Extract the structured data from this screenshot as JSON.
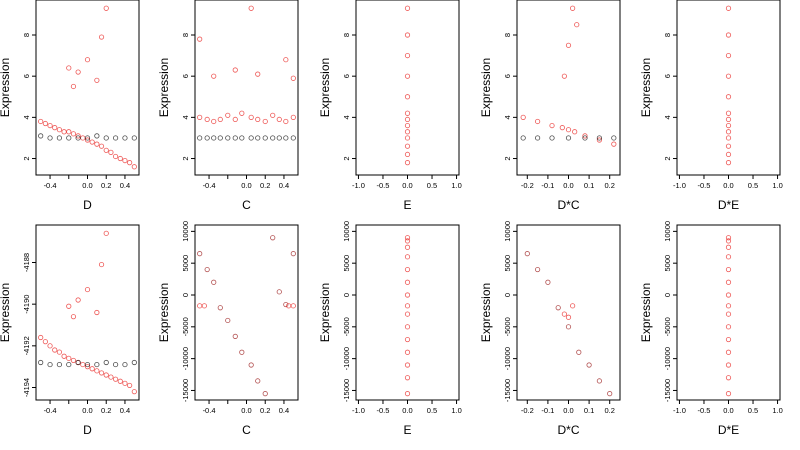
{
  "colors": {
    "red_series": "#e8211f",
    "black_series": "#111111",
    "dark_red": "#9b1b1b"
  },
  "chart_data": [
    {
      "type": "scatter",
      "xlabel": "D",
      "ylabel": "Expression",
      "xlim": [
        -0.55,
        0.55
      ],
      "ylim": [
        1.2,
        9.7
      ],
      "xticks": [
        -0.4,
        -0.2,
        0.0,
        0.2,
        0.4
      ],
      "xtick_labels": [
        "-0.4",
        "",
        "0.0",
        "0.2",
        "0.4"
      ],
      "yticks": [
        2,
        4,
        6,
        8
      ],
      "ytick_labels": [
        "2",
        "4",
        "6",
        "8"
      ],
      "series": [
        {
          "color": "red",
          "x": [
            -0.5,
            -0.45,
            -0.4,
            -0.35,
            -0.3,
            -0.25,
            -0.2,
            -0.15,
            -0.1,
            -0.05,
            0.0,
            0.05,
            0.1,
            0.15,
            0.2,
            0.25,
            0.3,
            0.35,
            0.4,
            0.45,
            0.5
          ],
          "y": [
            3.8,
            3.7,
            3.6,
            3.5,
            3.4,
            3.3,
            3.3,
            3.2,
            3.1,
            3.0,
            2.9,
            2.8,
            2.7,
            2.6,
            2.4,
            2.3,
            2.1,
            2.0,
            1.9,
            1.8,
            1.6
          ]
        },
        {
          "color": "red",
          "x": [
            -0.2,
            -0.1,
            0.0,
            0.1,
            0.15,
            0.2,
            -0.15
          ],
          "y": [
            6.4,
            6.2,
            6.8,
            5.8,
            7.9,
            9.3,
            5.5
          ]
        },
        {
          "color": "black",
          "x": [
            -0.5,
            -0.4,
            -0.3,
            -0.2,
            -0.1,
            0.0,
            0.1,
            0.2,
            0.3,
            0.4,
            0.5
          ],
          "y": [
            3.1,
            3.0,
            3.0,
            3.0,
            3.0,
            3.0,
            3.1,
            3.0,
            3.0,
            3.0,
            3.0
          ]
        }
      ]
    },
    {
      "type": "scatter",
      "xlabel": "C",
      "ylabel": "Expression",
      "xlim": [
        -0.55,
        0.55
      ],
      "ylim": [
        1.2,
        9.7
      ],
      "xticks": [
        -0.4,
        -0.2,
        0.0,
        0.2,
        0.4
      ],
      "xtick_labels": [
        "-0.4",
        "",
        "0.0",
        "0.2",
        "0.4"
      ],
      "yticks": [
        2,
        4,
        6,
        8
      ],
      "ytick_labels": [
        "2",
        "4",
        "6",
        "8"
      ],
      "series": [
        {
          "color": "red",
          "x": [
            -0.5,
            -0.42,
            -0.35,
            -0.28,
            -0.2,
            -0.12,
            -0.05,
            0.05,
            0.12,
            0.2,
            0.28,
            0.35,
            0.42,
            0.5
          ],
          "y": [
            4.0,
            3.9,
            3.8,
            3.9,
            4.1,
            3.9,
            4.2,
            4.0,
            3.9,
            3.8,
            4.1,
            3.9,
            3.8,
            4.0
          ]
        },
        {
          "color": "red",
          "x": [
            -0.5,
            -0.35,
            -0.12,
            0.05,
            0.12,
            0.42,
            0.5
          ],
          "y": [
            7.8,
            6.0,
            6.3,
            9.3,
            6.1,
            6.8,
            5.9
          ]
        },
        {
          "color": "black",
          "x": [
            -0.5,
            -0.42,
            -0.35,
            -0.28,
            -0.2,
            -0.12,
            -0.05,
            0.05,
            0.12,
            0.2,
            0.28,
            0.35,
            0.42,
            0.5
          ],
          "y": [
            3.0,
            3.0,
            3.0,
            3.0,
            3.0,
            3.0,
            3.0,
            3.0,
            3.0,
            3.0,
            3.0,
            3.0,
            3.0,
            3.0
          ]
        }
      ]
    },
    {
      "type": "scatter",
      "xlabel": "E",
      "ylabel": "Expression",
      "xlim": [
        -1.05,
        1.05
      ],
      "ylim": [
        1.2,
        9.7
      ],
      "xticks": [
        -1.0,
        -0.5,
        0.0,
        0.5,
        1.0
      ],
      "xtick_labels": [
        "-1.0",
        "-0.5",
        "0.0",
        "0.5",
        "1.0"
      ],
      "yticks": [
        2,
        4,
        6,
        8
      ],
      "ytick_labels": [
        "2",
        "4",
        "6",
        "8"
      ],
      "series": [
        {
          "color": "red",
          "x": [
            0,
            0,
            0,
            0,
            0,
            0,
            0,
            0,
            0,
            0,
            0,
            0,
            0
          ],
          "y": [
            1.8,
            2.2,
            2.6,
            3.0,
            3.3,
            3.6,
            3.9,
            4.2,
            5.0,
            6.0,
            7.0,
            8.0,
            9.3
          ]
        }
      ]
    },
    {
      "type": "scatter",
      "xlabel": "D*C",
      "ylabel": "Expression",
      "xlim": [
        -0.25,
        0.25
      ],
      "ylim": [
        1.2,
        9.7
      ],
      "xticks": [
        -0.2,
        -0.1,
        0.0,
        0.1,
        0.2
      ],
      "xtick_labels": [
        "-0.2",
        "-0.1",
        "0.0",
        "0.1",
        "0.2"
      ],
      "yticks": [
        2,
        4,
        6,
        8
      ],
      "ytick_labels": [
        "2",
        "4",
        "6",
        "8"
      ],
      "series": [
        {
          "color": "red",
          "x": [
            -0.22,
            -0.15,
            -0.08,
            -0.03,
            0.0,
            0.03,
            0.08,
            0.15,
            0.22
          ],
          "y": [
            4.0,
            3.8,
            3.6,
            3.5,
            3.4,
            3.3,
            3.1,
            2.9,
            2.7
          ]
        },
        {
          "color": "red",
          "x": [
            -0.02,
            0.0,
            0.02,
            0.04
          ],
          "y": [
            6.0,
            7.5,
            9.3,
            8.5
          ]
        },
        {
          "color": "black",
          "x": [
            -0.22,
            -0.15,
            -0.08,
            0.0,
            0.08,
            0.15,
            0.22
          ],
          "y": [
            3.0,
            3.0,
            3.0,
            3.0,
            3.0,
            3.0,
            3.0
          ]
        }
      ]
    },
    {
      "type": "scatter",
      "xlabel": "D*E",
      "ylabel": "Expression",
      "xlim": [
        -1.05,
        1.05
      ],
      "ylim": [
        1.2,
        9.7
      ],
      "xticks": [
        -1.0,
        -0.5,
        0.0,
        0.5,
        1.0
      ],
      "xtick_labels": [
        "-1.0",
        "-0.5",
        "0.0",
        "0.5",
        "1.0"
      ],
      "yticks": [
        2,
        4,
        6,
        8
      ],
      "ytick_labels": [
        "2",
        "4",
        "6",
        "8"
      ],
      "series": [
        {
          "color": "red",
          "x": [
            0,
            0,
            0,
            0,
            0,
            0,
            0,
            0,
            0,
            0,
            0,
            0,
            0
          ],
          "y": [
            1.8,
            2.2,
            2.6,
            3.0,
            3.3,
            3.6,
            3.9,
            4.2,
            5.0,
            6.0,
            7.0,
            8.0,
            9.3
          ]
        }
      ]
    },
    {
      "type": "scatter",
      "xlabel": "D",
      "ylabel": "Expression",
      "xlim": [
        -0.55,
        0.55
      ],
      "ylim": [
        -4194.6,
        -4186.2
      ],
      "xticks": [
        -0.4,
        -0.2,
        0.0,
        0.2,
        0.4
      ],
      "xtick_labels": [
        "-0.4",
        "",
        "0.0",
        "0.2",
        "0.4"
      ],
      "yticks": [
        -4194,
        -4192,
        -4190,
        -4188
      ],
      "ytick_labels": [
        "-4194",
        "-4192",
        "-4190",
        "-4188"
      ],
      "series": [
        {
          "color": "red",
          "x": [
            -0.5,
            -0.45,
            -0.4,
            -0.35,
            -0.3,
            -0.25,
            -0.2,
            -0.15,
            -0.1,
            -0.05,
            0.0,
            0.05,
            0.1,
            0.15,
            0.2,
            0.25,
            0.3,
            0.35,
            0.4,
            0.45,
            0.5
          ],
          "y": [
            -4191.6,
            -4191.8,
            -4192.0,
            -4192.2,
            -4192.3,
            -4192.5,
            -4192.6,
            -4192.7,
            -4192.8,
            -4192.9,
            -4193.0,
            -4193.1,
            -4193.2,
            -4193.3,
            -4193.4,
            -4193.5,
            -4193.6,
            -4193.7,
            -4193.8,
            -4193.9,
            -4194.2
          ]
        },
        {
          "color": "red",
          "x": [
            -0.2,
            -0.1,
            0.0,
            0.1,
            0.15,
            0.2,
            -0.15
          ],
          "y": [
            -4190.1,
            -4189.8,
            -4189.3,
            -4190.4,
            -4188.1,
            -4186.6,
            -4190.6
          ]
        },
        {
          "color": "black",
          "x": [
            -0.5,
            -0.4,
            -0.3,
            -0.2,
            -0.1,
            0.0,
            0.1,
            0.2,
            0.3,
            0.4,
            0.5
          ],
          "y": [
            -4192.8,
            -4192.9,
            -4192.9,
            -4192.9,
            -4192.8,
            -4192.9,
            -4192.9,
            -4192.8,
            -4192.9,
            -4192.9,
            -4192.8
          ]
        }
      ]
    },
    {
      "type": "scatter",
      "xlabel": "C",
      "ylabel": "Expression",
      "xlim": [
        -0.55,
        0.55
      ],
      "ylim": [
        -16500,
        11000
      ],
      "xticks": [
        -0.4,
        -0.2,
        0.0,
        0.2,
        0.4
      ],
      "xtick_labels": [
        "-0.4",
        "",
        "0.0",
        "0.2",
        "0.4"
      ],
      "yticks": [
        -15000,
        -10000,
        -5000,
        0,
        5000,
        10000
      ],
      "ytick_labels": [
        "-15000",
        "-10000",
        "-5000",
        "0",
        "5000",
        "10000"
      ],
      "series": [
        {
          "color": "dark_red",
          "x": [
            -0.5,
            -0.42,
            -0.35,
            -0.28,
            -0.2,
            -0.12,
            -0.05,
            0.05,
            0.12,
            0.2,
            0.28,
            0.35,
            0.42,
            0.5
          ],
          "y": [
            6500,
            4000,
            2000,
            -2000,
            -4000,
            -6500,
            -9000,
            -11000,
            -13500,
            -15500,
            9000,
            500,
            -1500,
            6500
          ]
        },
        {
          "color": "red",
          "x": [
            -0.5,
            -0.45,
            0.45,
            0.5
          ],
          "y": [
            -1700,
            -1700,
            -1700,
            -1700
          ]
        }
      ]
    },
    {
      "type": "scatter",
      "xlabel": "E",
      "ylabel": "Expression",
      "xlim": [
        -1.05,
        1.05
      ],
      "ylim": [
        -16500,
        11000
      ],
      "xticks": [
        -1.0,
        -0.5,
        0.0,
        0.5,
        1.0
      ],
      "xtick_labels": [
        "-1.0",
        "-0.5",
        "0.0",
        "0.5",
        "1.0"
      ],
      "yticks": [
        -15000,
        -10000,
        -5000,
        0,
        5000,
        10000
      ],
      "ytick_labels": [
        "-15000",
        "-10000",
        "-5000",
        "0",
        "5000",
        "10000"
      ],
      "series": [
        {
          "color": "red",
          "x": [
            0,
            0,
            0,
            0,
            0,
            0,
            0,
            0,
            0,
            0,
            0,
            0,
            0,
            0,
            0
          ],
          "y": [
            -15500,
            -13000,
            -11000,
            -9000,
            -7000,
            -5000,
            -3000,
            -1700,
            0,
            2000,
            4000,
            6000,
            7500,
            8500,
            9000
          ]
        }
      ]
    },
    {
      "type": "scatter",
      "xlabel": "D*C",
      "ylabel": "Expression",
      "xlim": [
        -0.25,
        0.25
      ],
      "ylim": [
        -16500,
        11000
      ],
      "xticks": [
        -0.2,
        -0.1,
        0.0,
        0.1,
        0.2
      ],
      "xtick_labels": [
        "-0.2",
        "-0.1",
        "0.0",
        "0.1",
        "0.2"
      ],
      "yticks": [
        -15000,
        -10000,
        -5000,
        0,
        5000,
        10000
      ],
      "ytick_labels": [
        "-15000",
        "-10000",
        "-5000",
        "0",
        "5000",
        "10000"
      ],
      "series": [
        {
          "color": "dark_red",
          "x": [
            -0.2,
            -0.15,
            -0.1,
            -0.05,
            0.0,
            0.05,
            0.1,
            0.15,
            0.2
          ],
          "y": [
            6500,
            4000,
            2000,
            -2000,
            -5000,
            -9000,
            -11000,
            -13500,
            -15500
          ]
        },
        {
          "color": "red",
          "x": [
            -0.02,
            0.0,
            0.02
          ],
          "y": [
            -3000,
            -3500,
            -1700
          ]
        }
      ]
    },
    {
      "type": "scatter",
      "xlabel": "D*E",
      "ylabel": "Expression",
      "xlim": [
        -1.05,
        1.05
      ],
      "ylim": [
        -16500,
        11000
      ],
      "xticks": [
        -1.0,
        -0.5,
        0.0,
        0.5,
        1.0
      ],
      "xtick_labels": [
        "-1.0",
        "-0.5",
        "0.0",
        "0.5",
        "1.0"
      ],
      "yticks": [
        -15000,
        -10000,
        -5000,
        0,
        5000,
        10000
      ],
      "ytick_labels": [
        "-15000",
        "-10000",
        "-5000",
        "0",
        "5000",
        "10000"
      ],
      "series": [
        {
          "color": "red",
          "x": [
            0,
            0,
            0,
            0,
            0,
            0,
            0,
            0,
            0,
            0,
            0,
            0,
            0,
            0,
            0
          ],
          "y": [
            -15500,
            -13000,
            -11000,
            -9000,
            -7000,
            -5000,
            -3000,
            -1700,
            0,
            2000,
            4000,
            6000,
            7500,
            8500,
            9000
          ]
        }
      ]
    }
  ]
}
